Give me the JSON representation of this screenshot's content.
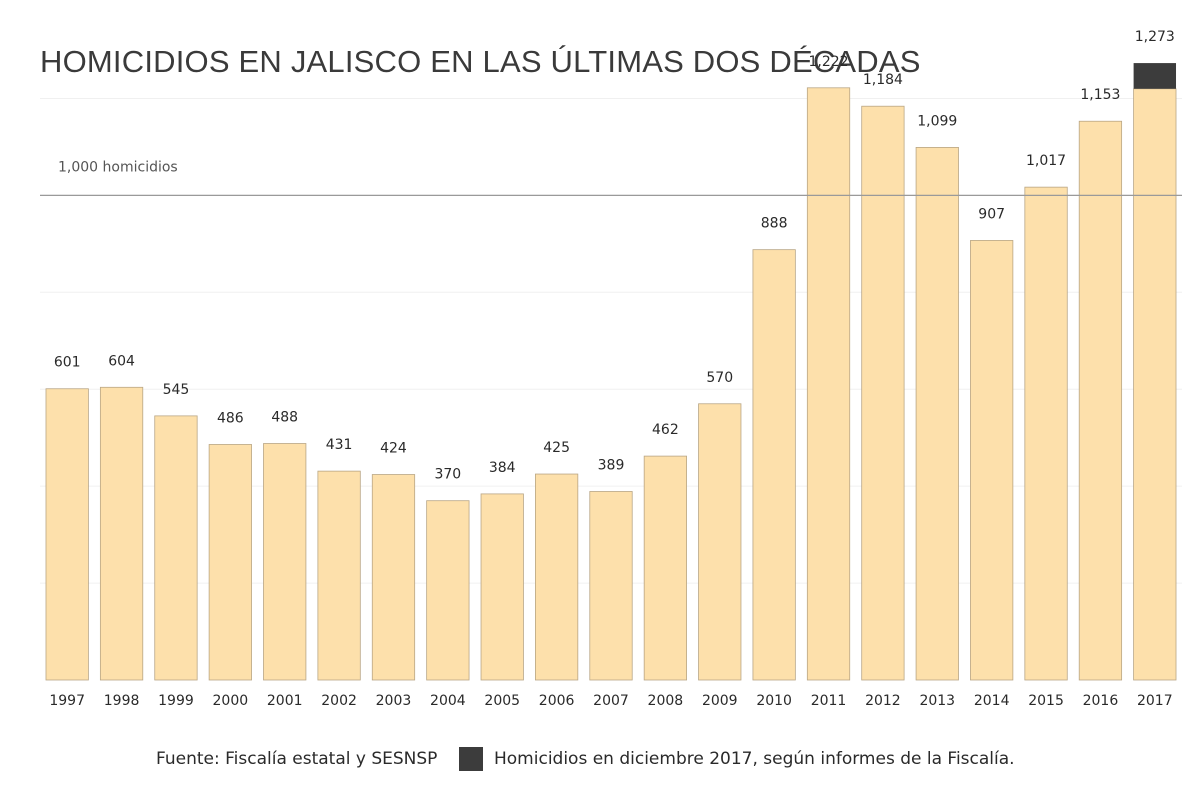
{
  "title": "HOMICIDIOS EN JALISCO EN LAS ÚLTIMAS DOS DÉCADAS",
  "source": "Fuente: Fiscalía estatal y SESNSP",
  "legend": {
    "label": "Homicidios en diciembre 2017, según informes de la Fiscalía.",
    "color": "#3c3c3c"
  },
  "colors": {
    "bar": "#fde0ab",
    "bar_stroke": "#b9a685",
    "highlight": "#3c3c3c",
    "reference_line": "#9a9a9a",
    "gridline": "#f0f0f0"
  },
  "chart_data": {
    "type": "bar",
    "categories": [
      "1997",
      "1998",
      "1999",
      "2000",
      "2001",
      "2002",
      "2003",
      "2004",
      "2005",
      "2006",
      "2007",
      "2008",
      "2009",
      "2010",
      "2011",
      "2012",
      "2013",
      "2014",
      "2015",
      "2016",
      "2017"
    ],
    "values": [
      601,
      604,
      545,
      486,
      488,
      431,
      424,
      370,
      384,
      425,
      389,
      462,
      570,
      888,
      1222,
      1184,
      1099,
      907,
      1017,
      1153,
      1273
    ],
    "value_labels": [
      "601",
      "604",
      "545",
      "486",
      "488",
      "431",
      "424",
      "370",
      "384",
      "425",
      "389",
      "462",
      "570",
      "888",
      "1,222",
      "1,184",
      "1,099",
      "907",
      "1,017",
      "1,153",
      "1,273"
    ],
    "highlight": {
      "category": "2017",
      "segment_from": 1220,
      "segment_to": 1273
    },
    "reference_line": {
      "value": 1000,
      "label": "1,000 homicidios"
    },
    "ylim": [
      0,
      1300
    ],
    "grid": true
  }
}
